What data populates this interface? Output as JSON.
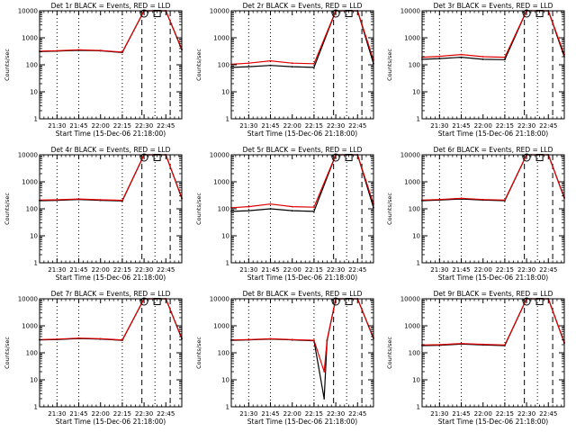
{
  "chart_data": [
    {
      "type": "line",
      "title": "Det 1r BLACK = Events, RED = LLD",
      "ylabel": "Counts/sec",
      "xlabel": "Start Time (15-Dec-06 21:18:00)",
      "y_scale": "log",
      "ylim": [
        1,
        10000
      ],
      "y_ticks": [
        "1",
        "10",
        "100",
        "1000",
        "10000"
      ],
      "x_ticks": [
        "21:30",
        "21:45",
        "22:00",
        "22:15",
        "22:30",
        "22:45"
      ],
      "x_minutes": [
        0,
        12,
        27,
        42,
        57,
        72,
        87,
        98
      ],
      "dashed_lines": [
        70.5,
        90
      ],
      "dotted_lines": [
        12,
        27,
        57,
        79.5
      ],
      "markers": [
        {
          "shape": "circle",
          "x": 72
        },
        {
          "shape": "square",
          "x": 81
        }
      ],
      "series": [
        {
          "color": "#000000",
          "values": [
            310,
            320,
            345,
            330,
            285,
            10000,
            10000,
            360
          ]
        },
        {
          "color": "#e00000",
          "values": [
            320,
            330,
            360,
            340,
            295,
            10000,
            10000,
            380
          ]
        }
      ]
    },
    {
      "type": "line",
      "title": "Det 2r BLACK = Events, RED = LLD",
      "ylabel": "Counts/sec",
      "xlabel": "Start Time (15-Dec-06 21:18:00)",
      "y_scale": "log",
      "ylim": [
        1,
        10000
      ],
      "y_ticks": [
        "1",
        "10",
        "100",
        "1000",
        "10000"
      ],
      "x_ticks": [
        "21:30",
        "21:45",
        "22:00",
        "22:15",
        "22:30",
        "22:45"
      ],
      "x_minutes": [
        0,
        12,
        27,
        42,
        57,
        72,
        87,
        98
      ],
      "dashed_lines": [
        70.5,
        90
      ],
      "dotted_lines": [
        12,
        27,
        57,
        79.5
      ],
      "markers": [
        {
          "shape": "circle",
          "x": 72
        },
        {
          "shape": "square",
          "x": 81
        }
      ],
      "series": [
        {
          "color": "#000000",
          "values": [
            80,
            85,
            95,
            85,
            80,
            10000,
            10000,
            110
          ]
        },
        {
          "color": "#e00000",
          "values": [
            105,
            115,
            140,
            115,
            110,
            10000,
            10000,
            150
          ]
        }
      ]
    },
    {
      "type": "line",
      "title": "Det 3r BLACK = Events, RED = LLD",
      "ylabel": "Counts/sec",
      "xlabel": "Start Time (15-Dec-06 21:18:00)",
      "y_scale": "log",
      "ylim": [
        1,
        10000
      ],
      "y_ticks": [
        "1",
        "10",
        "100",
        "1000",
        "10000"
      ],
      "x_ticks": [
        "21:30",
        "21:45",
        "22:00",
        "22:15",
        "22:30",
        "22:45"
      ],
      "x_minutes": [
        0,
        12,
        27,
        42,
        57,
        72,
        87,
        98
      ],
      "dashed_lines": [
        70.5,
        90
      ],
      "dotted_lines": [
        12,
        27,
        57,
        79.5
      ],
      "markers": [
        {
          "shape": "circle",
          "x": 72
        },
        {
          "shape": "square",
          "x": 81
        }
      ],
      "series": [
        {
          "color": "#000000",
          "values": [
            160,
            170,
            190,
            160,
            155,
            10000,
            10000,
            200
          ]
        },
        {
          "color": "#e00000",
          "values": [
            190,
            205,
            240,
            200,
            190,
            10000,
            10000,
            240
          ]
        }
      ]
    },
    {
      "type": "line",
      "title": "Det 4r BLACK = Events, RED = LLD",
      "ylabel": "Counts/sec",
      "xlabel": "Start Time (15-Dec-06 21:18:00)",
      "y_scale": "log",
      "ylim": [
        1,
        10000
      ],
      "y_ticks": [
        "1",
        "10",
        "100",
        "1000",
        "10000"
      ],
      "x_ticks": [
        "21:30",
        "21:45",
        "22:00",
        "22:15",
        "22:30",
        "22:45"
      ],
      "x_minutes": [
        0,
        12,
        27,
        42,
        57,
        72,
        87,
        98
      ],
      "dashed_lines": [
        70.5,
        90
      ],
      "dotted_lines": [
        12,
        27,
        57,
        79.5
      ],
      "markers": [
        {
          "shape": "circle",
          "x": 72
        },
        {
          "shape": "square",
          "x": 81
        }
      ],
      "series": [
        {
          "color": "#000000",
          "values": [
            200,
            205,
            220,
            205,
            195,
            10000,
            10000,
            240
          ]
        },
        {
          "color": "#e00000",
          "values": [
            210,
            215,
            230,
            215,
            205,
            10000,
            10000,
            250
          ]
        }
      ]
    },
    {
      "type": "line",
      "title": "Det 5r BLACK = Events, RED = LLD",
      "ylabel": "Counts/sec",
      "xlabel": "Start Time (15-Dec-06 21:18:00)",
      "y_scale": "log",
      "ylim": [
        1,
        10000
      ],
      "y_ticks": [
        "1",
        "10",
        "100",
        "1000",
        "10000"
      ],
      "x_ticks": [
        "21:30",
        "21:45",
        "22:00",
        "22:15",
        "22:30",
        "22:45"
      ],
      "x_minutes": [
        0,
        12,
        27,
        42,
        57,
        72,
        87,
        98
      ],
      "dashed_lines": [
        70.5,
        90
      ],
      "dotted_lines": [
        12,
        27,
        57,
        79.5
      ],
      "markers": [
        {
          "shape": "circle",
          "x": 72
        },
        {
          "shape": "square",
          "x": 81
        }
      ],
      "series": [
        {
          "color": "#000000",
          "values": [
            80,
            85,
            100,
            85,
            80,
            10000,
            10000,
            110
          ]
        },
        {
          "color": "#e00000",
          "values": [
            110,
            120,
            150,
            120,
            115,
            10000,
            10000,
            150
          ]
        }
      ]
    },
    {
      "type": "line",
      "title": "Det 6r BLACK = Events, RED = LLD",
      "ylabel": "Counts/sec",
      "xlabel": "Start Time (15-Dec-06 21:18:00)",
      "y_scale": "log",
      "ylim": [
        1,
        10000
      ],
      "y_ticks": [
        "1",
        "10",
        "100",
        "1000",
        "10000"
      ],
      "x_ticks": [
        "21:30",
        "21:45",
        "22:00",
        "22:15",
        "22:30",
        "22:45"
      ],
      "x_minutes": [
        0,
        12,
        27,
        42,
        57,
        72,
        87,
        98
      ],
      "dashed_lines": [
        70.5,
        90
      ],
      "dotted_lines": [
        12,
        27,
        57,
        79.5
      ],
      "markers": [
        {
          "shape": "circle",
          "x": 72
        },
        {
          "shape": "square",
          "x": 81
        }
      ],
      "series": [
        {
          "color": "#000000",
          "values": [
            200,
            210,
            230,
            210,
            200,
            10000,
            10000,
            250
          ]
        },
        {
          "color": "#e00000",
          "values": [
            210,
            220,
            245,
            220,
            210,
            10000,
            10000,
            260
          ]
        }
      ]
    },
    {
      "type": "line",
      "title": "Det 7r BLACK = Events, RED = LLD",
      "ylabel": "Counts/sec",
      "xlabel": "Start Time (15-Dec-06 21:18:00)",
      "y_scale": "log",
      "ylim": [
        1,
        10000
      ],
      "y_ticks": [
        "1",
        "10",
        "100",
        "1000",
        "10000"
      ],
      "x_ticks": [
        "21:30",
        "21:45",
        "22:00",
        "22:15",
        "22:30",
        "22:45"
      ],
      "x_minutes": [
        0,
        12,
        27,
        42,
        57,
        72,
        87,
        98
      ],
      "dashed_lines": [
        70.5,
        90
      ],
      "dotted_lines": [
        12,
        27,
        57,
        79.5
      ],
      "markers": [
        {
          "shape": "circle",
          "x": 72
        },
        {
          "shape": "square",
          "x": 81
        }
      ],
      "series": [
        {
          "color": "#000000",
          "values": [
            300,
            310,
            335,
            320,
            290,
            10000,
            10000,
            330
          ]
        },
        {
          "color": "#e00000",
          "values": [
            310,
            320,
            350,
            330,
            300,
            10000,
            10000,
            345
          ]
        }
      ]
    },
    {
      "type": "line",
      "title": "Det 8r BLACK = Events, RED = LLD",
      "ylabel": "Counts/sec",
      "xlabel": "Start Time (15-Dec-06 21:18:00)",
      "y_scale": "log",
      "ylim": [
        1,
        10000
      ],
      "y_ticks": [
        "1",
        "10",
        "100",
        "1000",
        "10000"
      ],
      "x_ticks": [
        "21:30",
        "21:45",
        "22:00",
        "22:15",
        "22:30",
        "22:45"
      ],
      "x_minutes": [
        0,
        12,
        27,
        42,
        57,
        64,
        66,
        72,
        87,
        98
      ],
      "dashed_lines": [
        70.5,
        90
      ],
      "dotted_lines": [
        12,
        27,
        57,
        79.5
      ],
      "markers": [
        {
          "shape": "circle",
          "x": 72
        },
        {
          "shape": "square",
          "x": 81
        }
      ],
      "series": [
        {
          "color": "#000000",
          "values": [
            290,
            300,
            320,
            300,
            280,
            2,
            280,
            10000,
            10000,
            340
          ]
        },
        {
          "color": "#e00000",
          "values": [
            300,
            310,
            330,
            310,
            290,
            20,
            300,
            10000,
            10000,
            350
          ]
        }
      ]
    },
    {
      "type": "line",
      "title": "Det 9r BLACK = Events, RED = LLD",
      "ylabel": "Counts/sec",
      "xlabel": "Start Time (15-Dec-06 21:18:00)",
      "y_scale": "log",
      "ylim": [
        1,
        10000
      ],
      "y_ticks": [
        "1",
        "10",
        "100",
        "1000",
        "10000"
      ],
      "x_ticks": [
        "21:30",
        "21:45",
        "22:00",
        "22:15",
        "22:30",
        "22:45"
      ],
      "x_minutes": [
        0,
        12,
        27,
        42,
        57,
        72,
        87,
        98
      ],
      "dashed_lines": [
        70.5,
        90
      ],
      "dotted_lines": [
        12,
        27,
        57,
        79.5
      ],
      "markers": [
        {
          "shape": "circle",
          "x": 72
        },
        {
          "shape": "square",
          "x": 81
        }
      ],
      "series": [
        {
          "color": "#000000",
          "values": [
            185,
            190,
            210,
            195,
            185,
            10000,
            10000,
            230
          ]
        },
        {
          "color": "#e00000",
          "values": [
            195,
            200,
            220,
            205,
            195,
            10000,
            10000,
            240
          ]
        }
      ]
    }
  ]
}
